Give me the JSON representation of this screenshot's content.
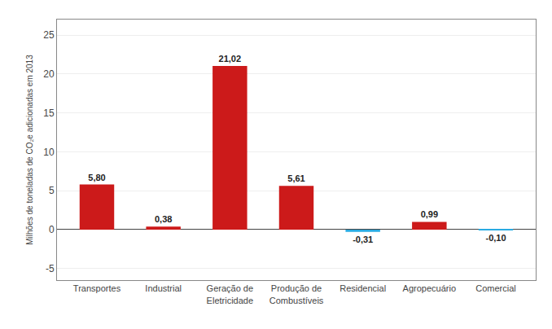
{
  "chart_data": {
    "type": "bar",
    "categories": [
      "Transportes",
      "Industrial",
      "Geração de\nEletricidade",
      "Produção de\nCombustíveis",
      "Residencial",
      "Agropecuário",
      "Comercial"
    ],
    "values": [
      5.8,
      0.38,
      21.02,
      5.61,
      -0.31,
      0.99,
      -0.1
    ],
    "value_labels": [
      "5,80",
      "0,38",
      "21,02",
      "5,61",
      "-0,31",
      "0,99",
      "-0,10"
    ],
    "colors": [
      "#cc1a1a",
      "#cc1a1a",
      "#cc1a1a",
      "#cc1a1a",
      "#29abe2",
      "#cc1a1a",
      "#29abe2"
    ],
    "ylabel": "Milhões de toneladas de CO₂e adicionadas em 2013",
    "ylim": [
      -6.5,
      27
    ],
    "yticks": [
      -5,
      0,
      5,
      10,
      15,
      20,
      25
    ],
    "grid": true,
    "data_labels": true
  }
}
